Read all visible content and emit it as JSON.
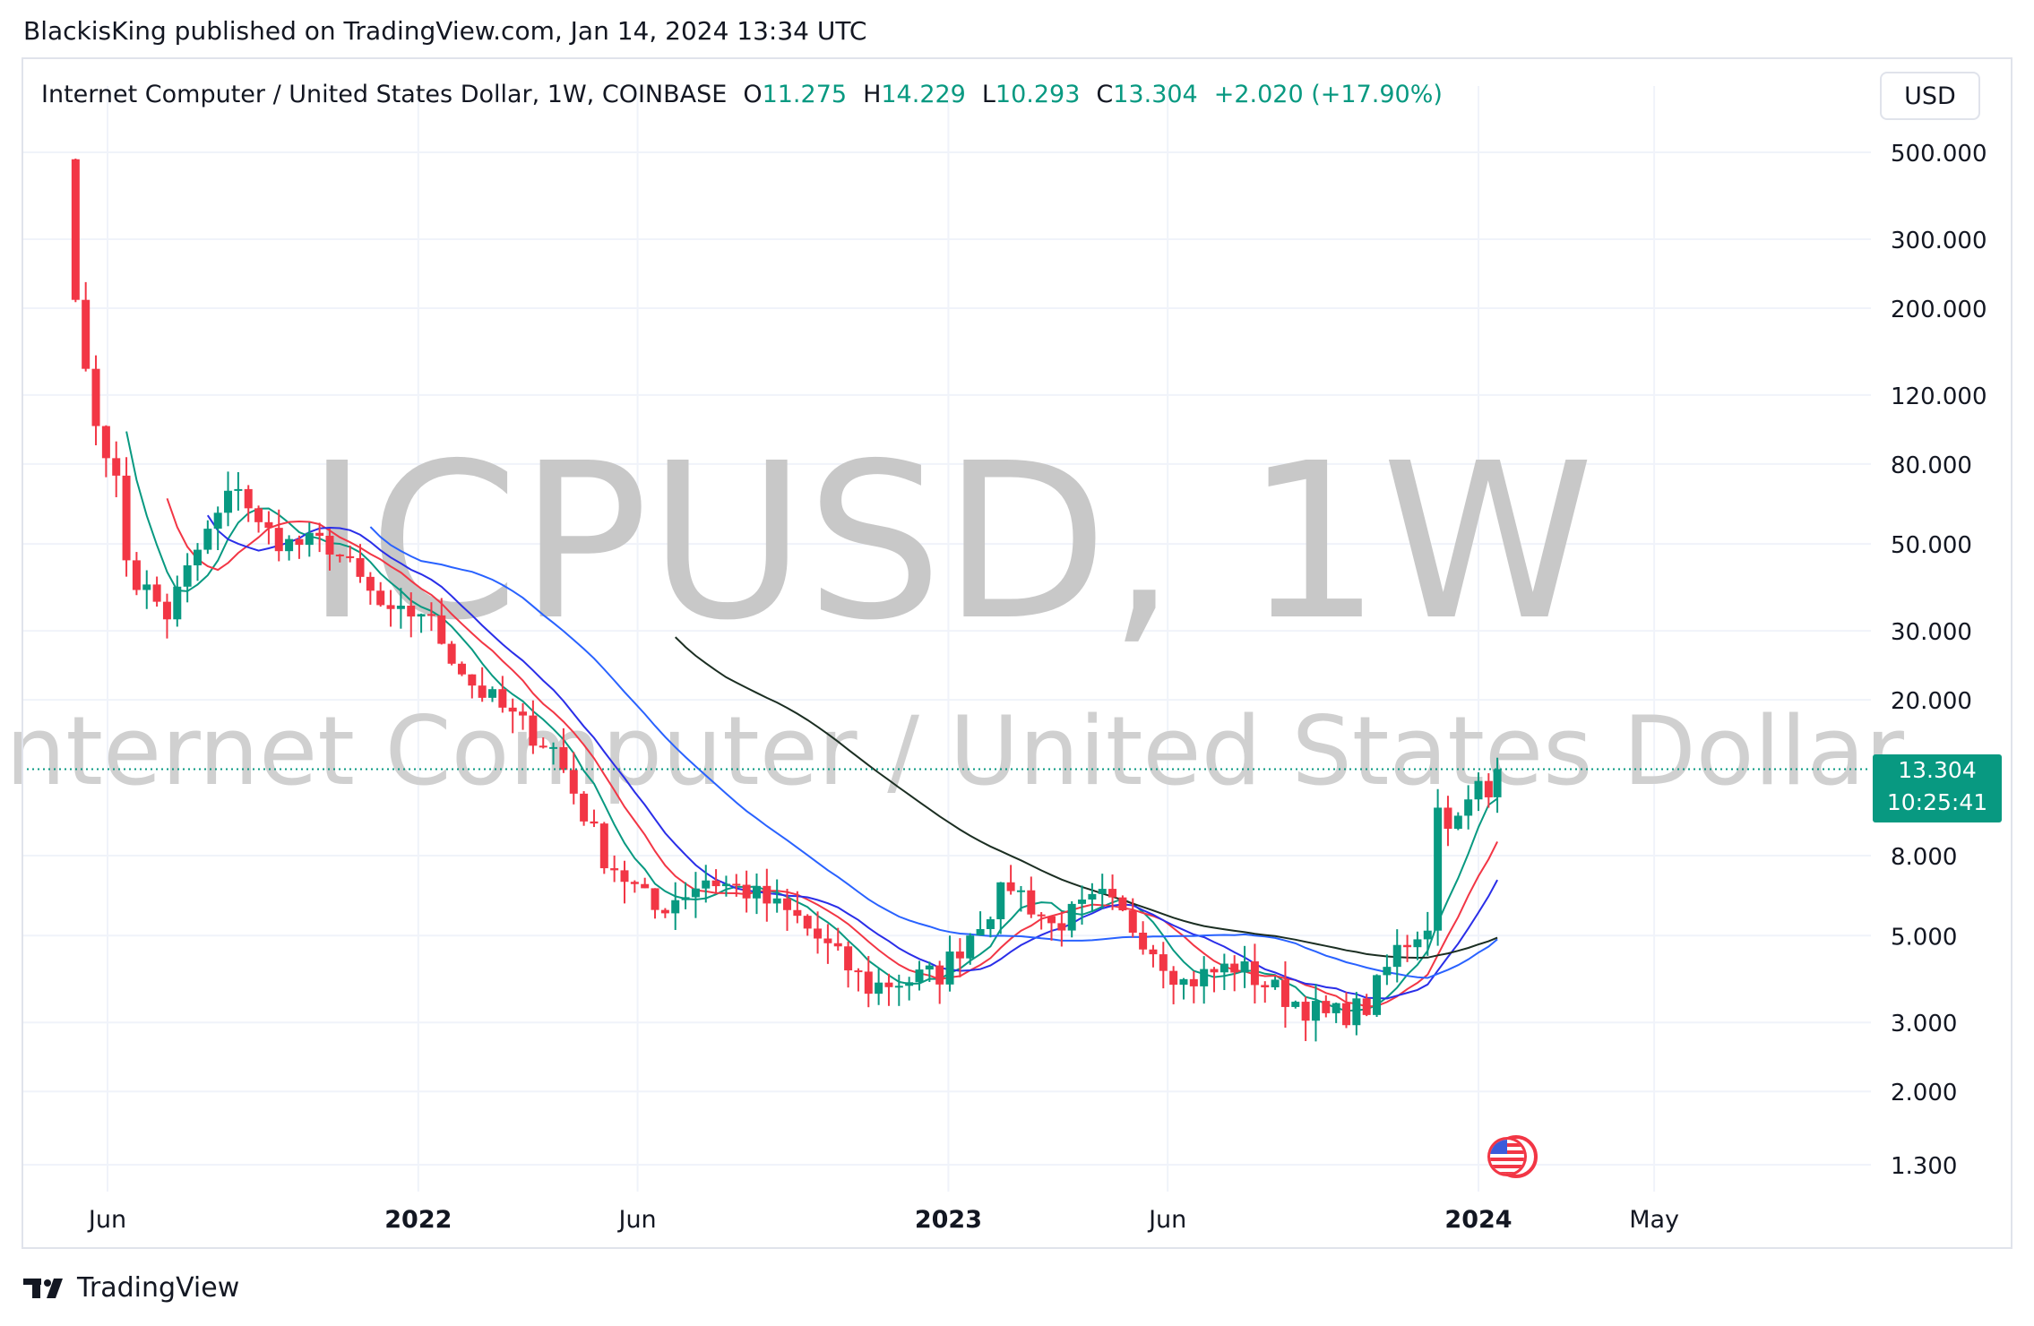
{
  "header": {
    "publish_line": "BlackisKing published on TradingView.com, Jan 14, 2024 13:34 UTC"
  },
  "legend": {
    "symbol": "Internet Computer / United States Dollar, 1W, COINBASE",
    "open_label": "O",
    "open": "11.275",
    "high_label": "H",
    "high": "14.229",
    "low_label": "L",
    "low": "10.293",
    "close_label": "C",
    "close": "13.304",
    "change": "+2.020 (+17.90%)"
  },
  "currency": "USD",
  "price_tag": {
    "price": "13.304",
    "countdown": "10:25:41"
  },
  "watermark": {
    "line1": "ICPUSD, 1W",
    "line2": "Internet Computer / United States Dollar"
  },
  "footer": {
    "brand": "TradingView"
  },
  "colors": {
    "up": "#089981",
    "down": "#f23645",
    "ma_fast": "#089981",
    "ma_mid": "#f23645",
    "ma_slow": "#2a2ee8",
    "ma_long_blue": "#2962ff",
    "ma_200": "#1b2e22",
    "grid": "#f0f3fa"
  },
  "chart_data": {
    "type": "candlestick",
    "scale": "log",
    "interval": "1W",
    "x_tick_labels": [
      "Jun",
      "2022",
      "Jun",
      "2023",
      "Jun",
      "2024",
      "May"
    ],
    "x_tick_dates": [
      "2021-06-01",
      "2022-01-01",
      "2022-06-01",
      "2023-01-01",
      "2023-06-01",
      "2024-01-01",
      "2024-05-01"
    ],
    "y_tick_labels": [
      "500.000",
      "300.000",
      "200.000",
      "120.000",
      "80.000",
      "50.000",
      "30.000",
      "20.000",
      "8.000",
      "5.000",
      "3.000",
      "2.000",
      "1.300"
    ],
    "y_tick_values": [
      500,
      300,
      200,
      120,
      80,
      50,
      30,
      20,
      8,
      5,
      3,
      2,
      1.3
    ],
    "ylim": [
      1.15,
      700
    ],
    "current_price": 13.304,
    "ohlc_weekly_close_path": [
      {
        "date": "2021-05-10",
        "close": 210
      },
      {
        "date": "2021-05-17",
        "close": 140
      },
      {
        "date": "2021-05-24",
        "close": 100
      },
      {
        "date": "2021-05-31",
        "close": 90
      },
      {
        "date": "2021-06-07",
        "close": 70
      },
      {
        "date": "2021-06-14",
        "close": 47
      },
      {
        "date": "2021-06-21",
        "close": 40
      },
      {
        "date": "2021-06-28",
        "close": 38
      },
      {
        "date": "2021-07-12",
        "close": 33
      },
      {
        "date": "2021-08-02",
        "close": 48
      },
      {
        "date": "2021-08-30",
        "close": 72
      },
      {
        "date": "2021-09-13",
        "close": 55
      },
      {
        "date": "2021-10-04",
        "close": 50
      },
      {
        "date": "2021-11-01",
        "close": 50
      },
      {
        "date": "2021-12-13",
        "close": 32
      },
      {
        "date": "2022-01-03",
        "close": 34
      },
      {
        "date": "2022-02-07",
        "close": 22
      },
      {
        "date": "2022-03-07",
        "close": 18
      },
      {
        "date": "2022-04-04",
        "close": 15
      },
      {
        "date": "2022-05-09",
        "close": 8.0
      },
      {
        "date": "2022-06-13",
        "close": 5.8
      },
      {
        "date": "2022-07-18",
        "close": 7.0
      },
      {
        "date": "2022-08-15",
        "close": 6.5
      },
      {
        "date": "2022-09-19",
        "close": 5.5
      },
      {
        "date": "2022-11-07",
        "close": 3.7
      },
      {
        "date": "2022-12-26",
        "close": 4.0
      },
      {
        "date": "2023-01-23",
        "close": 5.5
      },
      {
        "date": "2023-02-13",
        "close": 6.8
      },
      {
        "date": "2023-03-13",
        "close": 5.3
      },
      {
        "date": "2023-04-17",
        "close": 6.2
      },
      {
        "date": "2023-05-15",
        "close": 5.0
      },
      {
        "date": "2023-06-12",
        "close": 3.8
      },
      {
        "date": "2023-07-17",
        "close": 4.2
      },
      {
        "date": "2023-08-21",
        "close": 3.5
      },
      {
        "date": "2023-09-18",
        "close": 3.1
      },
      {
        "date": "2023-10-16",
        "close": 3.3
      },
      {
        "date": "2023-11-06",
        "close": 4.6
      },
      {
        "date": "2023-11-27",
        "close": 5.4
      },
      {
        "date": "2023-12-04",
        "close": 10.5
      },
      {
        "date": "2023-12-18",
        "close": 9.7
      },
      {
        "date": "2024-01-01",
        "close": 12.0
      },
      {
        "date": "2024-01-08",
        "close": 11.275
      },
      {
        "date": "2024-01-14",
        "close": 13.304
      }
    ]
  }
}
